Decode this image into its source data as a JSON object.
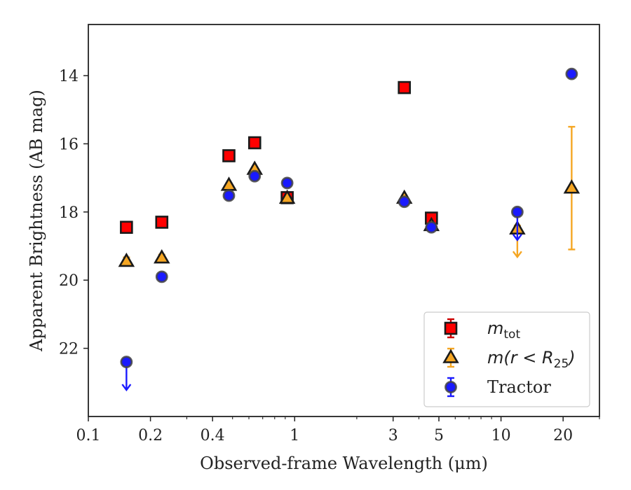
{
  "chart_data": {
    "type": "scatter",
    "xlabel": "Observed-frame Wavelength (μm)",
    "ylabel": "Apparent Brightness (AB mag)",
    "xscale": "log",
    "xlim": [
      0.1,
      30
    ],
    "ylim": [
      24,
      12.5
    ],
    "y_inverted": true,
    "x_ticks": [
      {
        "value": 0.1,
        "label": "0.1"
      },
      {
        "value": 0.2,
        "label": "0.2"
      },
      {
        "value": 0.4,
        "label": "0.4"
      },
      {
        "value": 1,
        "label": "1"
      },
      {
        "value": 3,
        "label": "3"
      },
      {
        "value": 5,
        "label": "5"
      },
      {
        "value": 10,
        "label": "10"
      },
      {
        "value": 20,
        "label": "20"
      }
    ],
    "y_ticks": [
      {
        "value": 14,
        "label": "14"
      },
      {
        "value": 16,
        "label": "16"
      },
      {
        "value": 18,
        "label": "18"
      },
      {
        "value": 20,
        "label": "20"
      },
      {
        "value": 22,
        "label": "22"
      }
    ],
    "grid": false,
    "legend_position": "lower-right",
    "legend": [
      {
        "key": "mtot",
        "label_main": "m",
        "label_sub": "tot"
      },
      {
        "key": "m25",
        "label_main": "m(r < R",
        "label_sub": "25",
        "label_end": ")"
      },
      {
        "key": "tractor",
        "label_main": "Tractor"
      }
    ],
    "series": [
      {
        "key": "mtot",
        "marker": "square",
        "fill": "#ff0000",
        "edge": "#1a1a1a",
        "errcolor": "#cc0000",
        "points": [
          {
            "x": 0.153,
            "y": 18.45,
            "err": 0.08
          },
          {
            "x": 0.227,
            "y": 18.3,
            "err": 0.07
          },
          {
            "x": 0.48,
            "y": 16.35,
            "err": 0.05
          },
          {
            "x": 0.64,
            "y": 15.97,
            "err": 0.05
          },
          {
            "x": 0.92,
            "y": 17.58,
            "err": 0.05
          },
          {
            "x": 3.4,
            "y": 14.35,
            "err": 0.05
          },
          {
            "x": 4.6,
            "y": 18.18,
            "err": 0.06
          }
        ]
      },
      {
        "key": "m25",
        "marker": "triangle",
        "fill": "#f5a623",
        "edge": "#1a1a1a",
        "errcolor": "#f5a623",
        "points": [
          {
            "x": 0.153,
            "y": 19.45,
            "err": 0.12
          },
          {
            "x": 0.227,
            "y": 19.35,
            "err": 0.1
          },
          {
            "x": 0.48,
            "y": 17.22,
            "err": 0.05
          },
          {
            "x": 0.64,
            "y": 16.75,
            "err": 0.05
          },
          {
            "x": 0.92,
            "y": 17.6,
            "err": 0.05
          },
          {
            "x": 3.4,
            "y": 17.6,
            "err": 0.05
          },
          {
            "x": 4.6,
            "y": 18.4,
            "err": 0.06
          },
          {
            "x": 12.0,
            "y": 18.5,
            "err": 0.1,
            "upper_limit": true
          },
          {
            "x": 22.0,
            "y": 17.3,
            "err": 1.8
          }
        ]
      },
      {
        "key": "tractor",
        "marker": "circle",
        "fill": "#1a1aff",
        "edge": "#444444",
        "errcolor": "#1a1aff",
        "points": [
          {
            "x": 0.153,
            "y": 22.4,
            "err": 0.1,
            "upper_limit": true
          },
          {
            "x": 0.227,
            "y": 19.9,
            "err": 0.06
          },
          {
            "x": 0.48,
            "y": 17.52,
            "err": 0.04
          },
          {
            "x": 0.64,
            "y": 16.95,
            "err": 0.04
          },
          {
            "x": 0.92,
            "y": 17.15,
            "err": 0.04
          },
          {
            "x": 3.4,
            "y": 17.7,
            "err": 0.04
          },
          {
            "x": 4.6,
            "y": 18.45,
            "err": 0.05
          },
          {
            "x": 12.0,
            "y": 18.0,
            "err": 0.08,
            "upper_limit": true
          },
          {
            "x": 22.0,
            "y": 13.95,
            "err": 0.05
          }
        ]
      }
    ]
  }
}
